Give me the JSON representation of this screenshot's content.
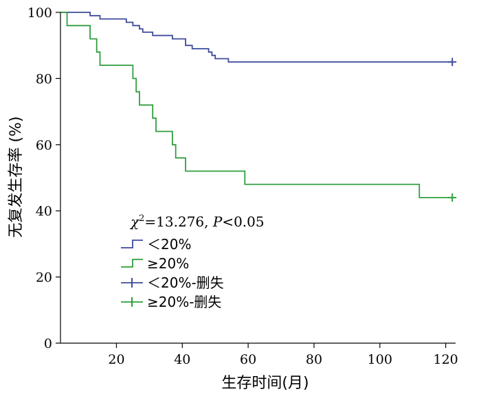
{
  "chart_data": {
    "type": "line",
    "subtype": "kaplan-meier step",
    "xlabel": "生存时间(月)",
    "ylabel": "无复发生存率 (%)",
    "xlim": [
      3,
      123
    ],
    "ylim": [
      0,
      100
    ],
    "xticks": [
      20,
      40,
      60,
      80,
      100,
      120
    ],
    "yticks": [
      0,
      20,
      40,
      60,
      80,
      100
    ],
    "annotation": {
      "chi_symbol": "χ",
      "chi_exponent": "2",
      "chi_value": "=13.276, ",
      "p_symbol": "P",
      "p_value": "<0.05"
    },
    "legend_position": "center-left",
    "series": [
      {
        "name": "＜20%",
        "color": "#3d4a9a",
        "points": [
          [
            3,
            100
          ],
          [
            12,
            100
          ],
          [
            12,
            99
          ],
          [
            15,
            99
          ],
          [
            15,
            98
          ],
          [
            23,
            98
          ],
          [
            23,
            97
          ],
          [
            25,
            97
          ],
          [
            25,
            96
          ],
          [
            27,
            96
          ],
          [
            27,
            95
          ],
          [
            28,
            95
          ],
          [
            28,
            94
          ],
          [
            31,
            94
          ],
          [
            31,
            93
          ],
          [
            37,
            93
          ],
          [
            37,
            92
          ],
          [
            41,
            92
          ],
          [
            41,
            90
          ],
          [
            43,
            90
          ],
          [
            43,
            89
          ],
          [
            48,
            89
          ],
          [
            48,
            88
          ],
          [
            49,
            88
          ],
          [
            49,
            87
          ],
          [
            50,
            87
          ],
          [
            50,
            86
          ],
          [
            54,
            86
          ],
          [
            54,
            85
          ],
          [
            122,
            85
          ]
        ],
        "censored": [
          [
            122,
            85
          ]
        ]
      },
      {
        "name": "≥20%",
        "color": "#2e9e3c",
        "points": [
          [
            3,
            100
          ],
          [
            5,
            100
          ],
          [
            5,
            96
          ],
          [
            12,
            96
          ],
          [
            12,
            92
          ],
          [
            14,
            92
          ],
          [
            14,
            88
          ],
          [
            15,
            88
          ],
          [
            15,
            84
          ],
          [
            25,
            84
          ],
          [
            25,
            80
          ],
          [
            26,
            80
          ],
          [
            26,
            76
          ],
          [
            27,
            76
          ],
          [
            27,
            72
          ],
          [
            31,
            72
          ],
          [
            31,
            68
          ],
          [
            32,
            68
          ],
          [
            32,
            64
          ],
          [
            37,
            64
          ],
          [
            37,
            60
          ],
          [
            38,
            60
          ],
          [
            38,
            56
          ],
          [
            41,
            56
          ],
          [
            41,
            52
          ],
          [
            59,
            52
          ],
          [
            59,
            48
          ],
          [
            112,
            48
          ],
          [
            112,
            44
          ],
          [
            122,
            44
          ]
        ],
        "censored": [
          [
            122,
            44
          ]
        ]
      }
    ],
    "legend": [
      {
        "label": "＜20%",
        "kind": "step",
        "color": "#3d4a9a"
      },
      {
        "label": "≥20%",
        "kind": "step",
        "color": "#2e9e3c"
      },
      {
        "label": "＜20%-删失",
        "kind": "plus",
        "color": "#3d4a9a"
      },
      {
        "label": "≥20%-删失",
        "kind": "plus",
        "color": "#2e9e3c"
      }
    ]
  }
}
